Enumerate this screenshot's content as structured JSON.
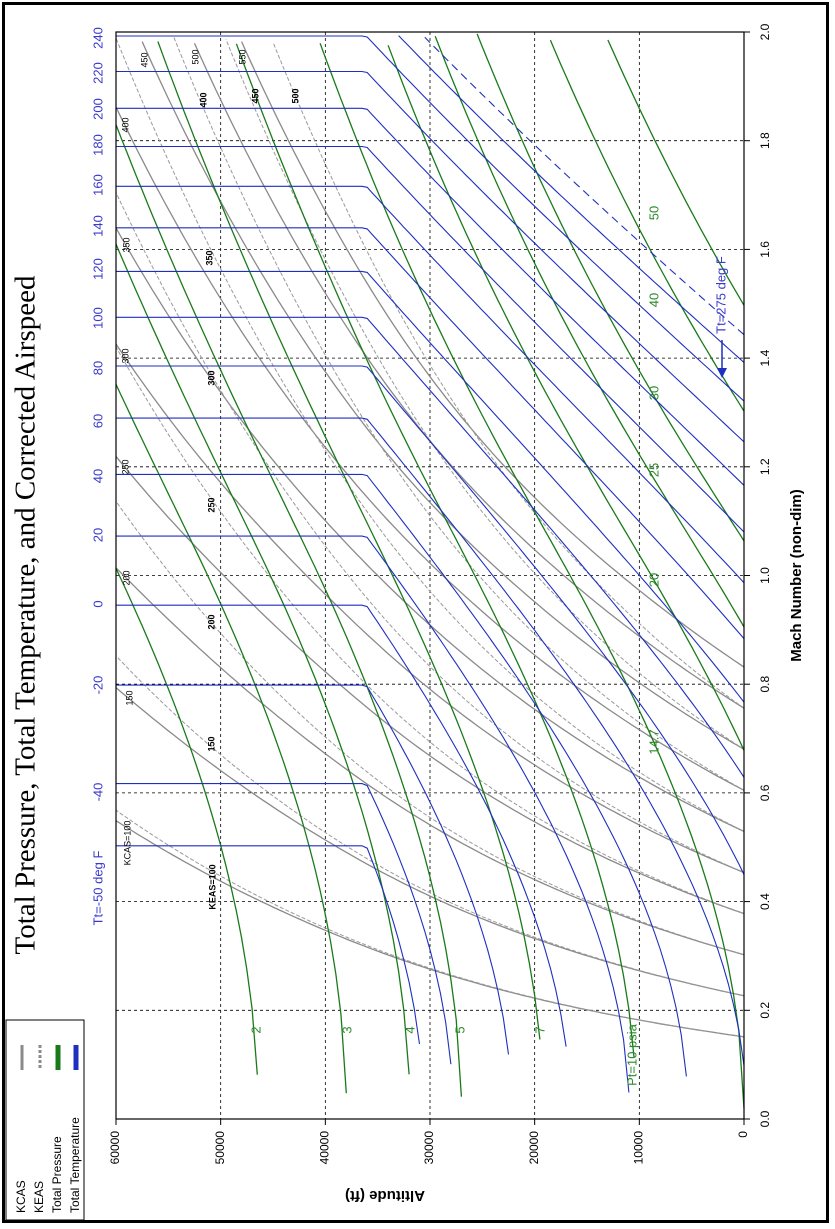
{
  "chart_data": {
    "type": "line",
    "title": "Total Pressure, Total Temperature, and Corrected Airspeed",
    "xlabel": "Mach Number (non-dim)",
    "ylabel": "Altitude (ft)",
    "xlim": [
      0.0,
      2.0
    ],
    "ylim": [
      0,
      60000
    ],
    "x_ticks": [
      "0.0",
      "0.2",
      "0.4",
      "0.6",
      "0.8",
      "1.0",
      "1.2",
      "1.4",
      "1.6",
      "1.8",
      "2.0"
    ],
    "y_ticks": [
      "0",
      "10000",
      "20000",
      "30000",
      "40000",
      "50000",
      "60000"
    ],
    "grid": "dashed, every 0.2 Mach and 10000 ft",
    "legend": {
      "position": "bottom-left",
      "entries": [
        {
          "label": "KCAS",
          "color": "#8a8a8a",
          "style": "solid"
        },
        {
          "label": "KEAS",
          "color": "#8a8a8a",
          "style": "dashed"
        },
        {
          "label": "Total Pressure",
          "color": "#1a7a1a",
          "style": "solid"
        },
        {
          "label": "Total Temperature",
          "color": "#1f2fc0",
          "style": "solid"
        }
      ]
    },
    "colors": {
      "kcas": "#8a8a8a",
      "keas": "#9a9a9a",
      "pressure": "#1a7a1a",
      "temperature": "#1f2fc0",
      "pressure_label": "#2a8a2a",
      "temperature_label": "#3a3acc"
    },
    "temperature_top_labels": [
      "-40",
      "-20",
      "0",
      "20",
      "40",
      "60",
      "80",
      "100",
      "120",
      "140",
      "160",
      "180",
      "200",
      "220",
      "240"
    ],
    "temperature_annotations": {
      "low": "Tt=-50 deg F",
      "high": "Tt=275 deg F"
    },
    "temperature_series_F": [
      -50,
      -40,
      -20,
      0,
      20,
      40,
      60,
      80,
      100,
      120,
      140,
      160,
      180,
      200,
      220,
      240,
      260,
      275
    ],
    "pressure_labels": [
      "2",
      "3",
      "4",
      "5",
      "7",
      "Pt=10 psia",
      "14.7",
      "20",
      "25",
      "30",
      "40",
      "50"
    ],
    "pressure_series_psia": [
      2,
      3,
      4,
      5,
      7,
      10,
      14.7,
      20,
      25,
      30,
      40,
      50
    ],
    "kcas_labels": [
      "KCAS=100",
      "150",
      "200",
      "250",
      "300",
      "350",
      "400",
      "450",
      "500",
      "550"
    ],
    "keas_labels": [
      "KEAS=100",
      "150",
      "200",
      "250",
      "300",
      "350",
      "400",
      "450",
      "500"
    ],
    "airspeed_series_kt": [
      100,
      150,
      200,
      250,
      300,
      350,
      400,
      450,
      500,
      550
    ]
  }
}
